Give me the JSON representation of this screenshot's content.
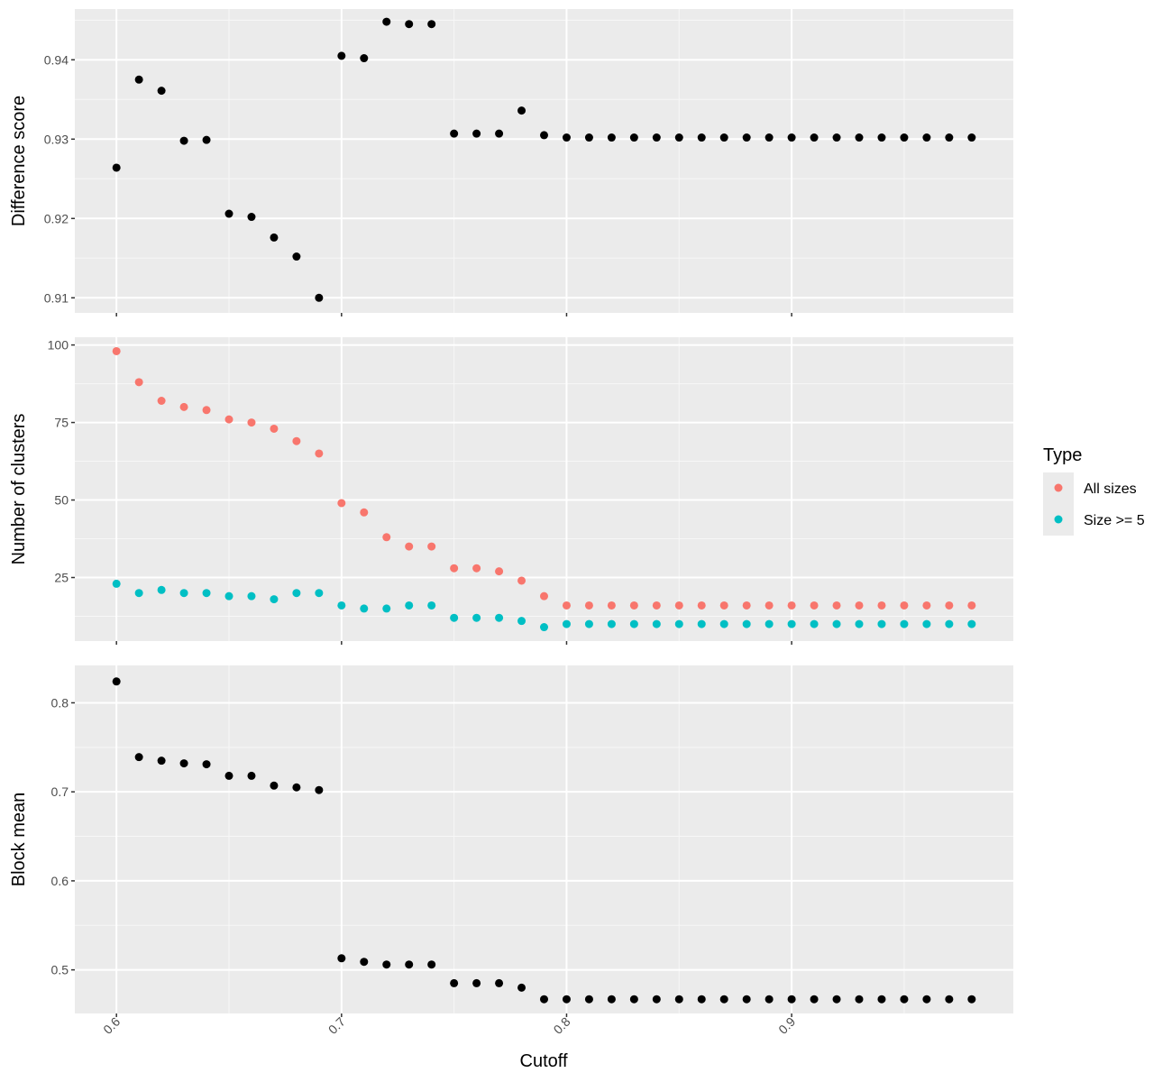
{
  "chart_data": {
    "type": "scatter",
    "xlabel": "Cutoff",
    "x_ticks": [
      "0.6",
      "0.7",
      "0.8",
      "0.9"
    ],
    "x_tick_values": [
      0.6,
      0.7,
      0.8,
      0.9
    ],
    "xlim": [
      0.5815,
      0.9985
    ],
    "x": [
      0.6,
      0.61,
      0.62,
      0.63,
      0.64,
      0.65,
      0.66,
      0.67,
      0.68,
      0.69,
      0.7,
      0.71,
      0.72,
      0.73,
      0.74,
      0.75,
      0.76,
      0.77,
      0.78,
      0.79,
      0.8,
      0.81,
      0.82,
      0.83,
      0.84,
      0.85,
      0.86,
      0.87,
      0.88,
      0.89,
      0.9,
      0.91,
      0.92,
      0.93,
      0.94,
      0.95,
      0.96,
      0.97,
      0.98
    ],
    "grid": true,
    "legend_position": "right",
    "legend": {
      "title": "Type",
      "entries": [
        {
          "label": "All sizes",
          "color": "#F8766D"
        },
        {
          "label": "Size >= 5",
          "color": "#00BFC4"
        }
      ]
    },
    "panels": [
      {
        "id": "difference",
        "ylabel": "Difference score",
        "ylim": [
          0.9081,
          0.9464
        ],
        "y_ticks": [
          "0.91",
          "0.92",
          "0.93",
          "0.94"
        ],
        "y_tick_values": [
          0.91,
          0.92,
          0.93,
          0.94
        ],
        "series": [
          {
            "color": "#000000",
            "values": [
              0.9264,
              0.9375,
              0.9361,
              0.9298,
              0.9299,
              0.9206,
              0.9202,
              0.9176,
              0.9152,
              0.91,
              0.9405,
              0.9402,
              0.9448,
              0.9445,
              0.9445,
              0.9307,
              0.9307,
              0.9307,
              0.9336,
              0.9305,
              0.9302,
              0.9302,
              0.9302,
              0.9302,
              0.9302,
              0.9302,
              0.9302,
              0.9302,
              0.9302,
              0.9302,
              0.9302,
              0.9302,
              0.9302,
              0.9302,
              0.9302,
              0.9302,
              0.9302,
              0.9302,
              0.9302
            ]
          }
        ]
      },
      {
        "id": "clusters",
        "ylabel": "Number of clusters",
        "ylim": [
          4.5,
          102.5
        ],
        "y_ticks": [
          "25",
          "50",
          "75",
          "100"
        ],
        "y_tick_values": [
          25,
          50,
          75,
          100
        ],
        "series": [
          {
            "name": "All sizes",
            "color": "#F8766D",
            "values": [
              98,
              88,
              82,
              80,
              79,
              76,
              75,
              73,
              69,
              65,
              49,
              46,
              38,
              35,
              35,
              28,
              28,
              27,
              24,
              19,
              16,
              16,
              16,
              16,
              16,
              16,
              16,
              16,
              16,
              16,
              16,
              16,
              16,
              16,
              16,
              16,
              16,
              16,
              16
            ]
          },
          {
            "name": "Size >= 5",
            "color": "#00BFC4",
            "values": [
              23,
              20,
              21,
              20,
              20,
              19,
              19,
              18,
              20,
              20,
              16,
              15,
              15,
              16,
              16,
              12,
              12,
              12,
              11,
              9,
              10,
              10,
              10,
              10,
              10,
              10,
              10,
              10,
              10,
              10,
              10,
              10,
              10,
              10,
              10,
              10,
              10,
              10,
              10
            ]
          }
        ]
      },
      {
        "id": "block",
        "ylabel": "Block mean",
        "ylim": [
          0.451,
          0.842
        ],
        "y_ticks": [
          "0.5",
          "0.6",
          "0.7",
          "0.8"
        ],
        "y_tick_values": [
          0.5,
          0.6,
          0.7,
          0.8
        ],
        "series": [
          {
            "color": "#000000",
            "values": [
              0.824,
              0.739,
              0.735,
              0.732,
              0.731,
              0.718,
              0.718,
              0.707,
              0.705,
              0.702,
              0.513,
              0.509,
              0.506,
              0.506,
              0.506,
              0.485,
              0.485,
              0.485,
              0.48,
              0.467,
              0.467,
              0.467,
              0.467,
              0.467,
              0.467,
              0.467,
              0.467,
              0.467,
              0.467,
              0.467,
              0.467,
              0.467,
              0.467,
              0.467,
              0.467,
              0.467,
              0.467,
              0.467,
              0.467
            ]
          }
        ]
      }
    ]
  }
}
